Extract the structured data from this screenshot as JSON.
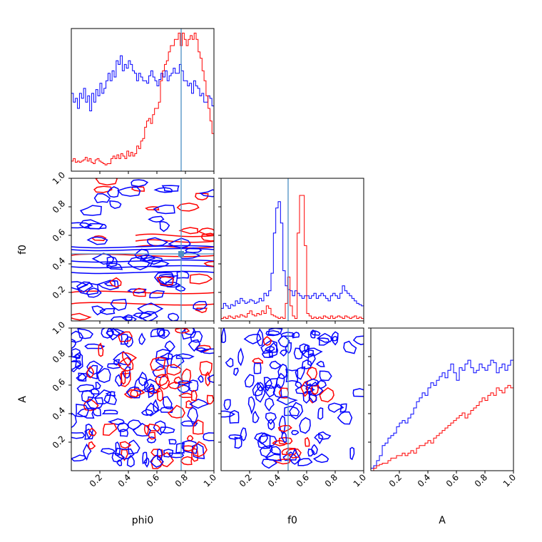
{
  "chart_data": {
    "type": "corner",
    "parameters": [
      "phi0",
      "f0",
      "A"
    ],
    "ranges": {
      "phi0": [
        0,
        1
      ],
      "f0": [
        0,
        1
      ],
      "A": [
        0,
        1
      ]
    },
    "truth": {
      "phi0": 0.77,
      "f0": 0.47
    },
    "tick_labels": [
      "0.2",
      "0.4",
      "0.6",
      "0.8",
      "1.0"
    ],
    "xlabel": [
      "phi0",
      "f0",
      "A"
    ],
    "ylabel": [
      "",
      "f0",
      "A"
    ],
    "series_colors": {
      "blue": "#0000ff",
      "red": "#ff0000",
      "truth": "#4c8ec2"
    },
    "histograms": {
      "phi0": {
        "blue": [
          0.62,
          0.55,
          0.58,
          0.5,
          0.62,
          0.58,
          0.66,
          0.55,
          0.6,
          0.48,
          0.62,
          0.55,
          0.65,
          0.6,
          0.7,
          0.62,
          0.66,
          0.72,
          0.78,
          0.72,
          0.8,
          0.75,
          0.88,
          0.85,
          0.92,
          0.8,
          0.85,
          0.82,
          0.88,
          0.85,
          0.8,
          0.78,
          0.72,
          0.78,
          0.75,
          0.72,
          0.72,
          0.7,
          0.76,
          0.8,
          0.75,
          0.72,
          0.68,
          0.73,
          0.78,
          0.75,
          0.8,
          0.72,
          0.76,
          0.78,
          0.82,
          0.78,
          0.78,
          0.85,
          0.8,
          0.72,
          0.72,
          0.68,
          0.7,
          0.62,
          0.72,
          0.68,
          0.66,
          0.6,
          0.62,
          0.55,
          0.55,
          0.6,
          0.58,
          0.52
        ],
        "red": [
          0.08,
          0.1,
          0.07,
          0.08,
          0.07,
          0.08,
          0.09,
          0.11,
          0.08,
          0.1,
          0.07,
          0.06,
          0.09,
          0.1,
          0.08,
          0.07,
          0.06,
          0.05,
          0.06,
          0.06,
          0.1,
          0.12,
          0.1,
          0.13,
          0.1,
          0.14,
          0.12,
          0.1,
          0.16,
          0.12,
          0.15,
          0.12,
          0.14,
          0.2,
          0.18,
          0.24,
          0.26,
          0.35,
          0.4,
          0.42,
          0.38,
          0.45,
          0.5,
          0.5,
          0.55,
          0.72,
          0.8,
          0.85,
          0.88,
          0.95,
          1.0,
          1.0,
          1.05,
          1.05,
          1.1,
          1.0,
          1.1,
          1.05,
          1.0,
          1.05,
          1.08,
          1.05,
          1.1,
          1.05,
          0.95,
          0.9,
          0.8,
          0.72,
          0.6,
          0.5,
          0.4,
          0.3
        ]
      },
      "f0": {
        "blue": [
          0.1,
          0.14,
          0.12,
          0.1,
          0.13,
          0.12,
          0.16,
          0.14,
          0.18,
          0.16,
          0.14,
          0.15,
          0.17,
          0.16,
          0.14,
          0.15,
          0.18,
          0.16,
          0.22,
          0.2,
          0.24,
          0.38,
          0.7,
          0.9,
          0.95,
          0.78,
          0.4,
          0.28,
          0.25,
          0.24,
          0.2,
          0.24,
          0.22,
          0.2,
          0.18,
          0.2,
          0.2,
          0.18,
          0.2,
          0.22,
          0.18,
          0.2,
          0.22,
          0.2,
          0.18,
          0.16,
          0.2,
          0.22,
          0.2,
          0.18,
          0.22,
          0.28,
          0.24,
          0.22,
          0.2,
          0.18,
          0.16,
          0.14,
          0.13,
          0.12
        ],
        "red": [
          0.02,
          0.03,
          0.02,
          0.04,
          0.03,
          0.02,
          0.04,
          0.03,
          0.05,
          0.04,
          0.03,
          0.06,
          0.08,
          0.05,
          0.04,
          0.06,
          0.05,
          0.08,
          0.06,
          0.12,
          0.1,
          0.05,
          0.04,
          0.03,
          0.02,
          0.03,
          0.02,
          0.14,
          0.35,
          0.12,
          0.04,
          0.02,
          0.7,
          1.0,
          1.0,
          0.6,
          0.06,
          0.04,
          0.02,
          0.03,
          0.02,
          0.03,
          0.02,
          0.04,
          0.03,
          0.02,
          0.04,
          0.02,
          0.03,
          0.04,
          0.03,
          0.02,
          0.04,
          0.03,
          0.02,
          0.03,
          0.04,
          0.02,
          0.03,
          0.02
        ]
      },
      "A": {
        "blue": [
          0.02,
          0.04,
          0.08,
          0.12,
          0.2,
          0.22,
          0.26,
          0.28,
          0.3,
          0.35,
          0.38,
          0.4,
          0.38,
          0.42,
          0.45,
          0.5,
          0.55,
          0.58,
          0.62,
          0.6,
          0.66,
          0.7,
          0.68,
          0.72,
          0.75,
          0.78,
          0.74,
          0.8,
          0.85,
          0.78,
          0.72,
          0.82,
          0.8,
          0.85,
          0.88,
          0.82,
          0.78,
          0.8,
          0.85,
          0.82,
          0.8,
          0.84,
          0.88,
          0.86,
          0.78,
          0.82,
          0.85,
          0.8,
          0.84,
          0.88
        ],
        "red": [
          0.0,
          0.02,
          0.04,
          0.05,
          0.06,
          0.06,
          0.08,
          0.1,
          0.1,
          0.12,
          0.12,
          0.14,
          0.12,
          0.14,
          0.16,
          0.14,
          0.18,
          0.2,
          0.2,
          0.22,
          0.24,
          0.22,
          0.26,
          0.28,
          0.3,
          0.32,
          0.34,
          0.36,
          0.38,
          0.4,
          0.42,
          0.44,
          0.46,
          0.42,
          0.45,
          0.48,
          0.5,
          0.52,
          0.55,
          0.58,
          0.56,
          0.6,
          0.62,
          0.6,
          0.66,
          0.64,
          0.62,
          0.66,
          0.68,
          0.66
        ]
      }
    }
  }
}
